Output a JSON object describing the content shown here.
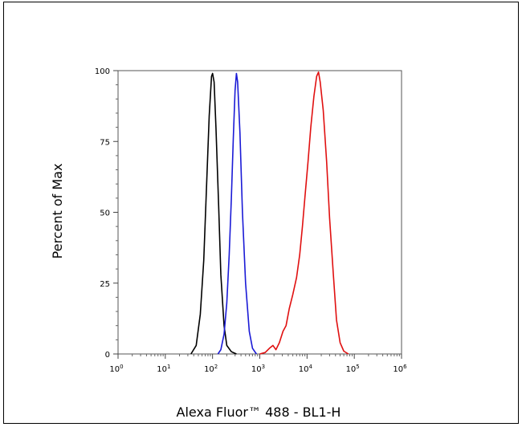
{
  "chart_data": {
    "type": "line",
    "xlabel": "Alexa Fluor™ 488 - BL1-H",
    "ylabel": "Percent of Max",
    "x_scale": "log",
    "xlim": [
      1,
      1000000
    ],
    "ylim": [
      0,
      100
    ],
    "x_ticks": [
      {
        "base": "10",
        "exp": "0"
      },
      {
        "base": "10",
        "exp": "1"
      },
      {
        "base": "10",
        "exp": "2"
      },
      {
        "base": "10",
        "exp": "3"
      },
      {
        "base": "10",
        "exp": "4"
      },
      {
        "base": "10",
        "exp": "5"
      },
      {
        "base": "10",
        "exp": "6"
      }
    ],
    "y_ticks": [
      "0",
      "25",
      "50",
      "75",
      "100"
    ],
    "grid": false,
    "series": [
      {
        "color": "#000000",
        "points": [
          [
            35,
            0
          ],
          [
            45,
            3
          ],
          [
            55,
            14
          ],
          [
            65,
            33
          ],
          [
            75,
            60
          ],
          [
            85,
            84
          ],
          [
            95,
            98
          ],
          [
            100,
            99
          ],
          [
            108,
            96
          ],
          [
            118,
            80
          ],
          [
            135,
            52
          ],
          [
            150,
            28
          ],
          [
            175,
            10
          ],
          [
            200,
            3
          ],
          [
            250,
            0.8
          ],
          [
            320,
            0
          ]
        ]
      },
      {
        "color": "#1a1ad6",
        "points": [
          [
            130,
            0
          ],
          [
            150,
            1.5
          ],
          [
            175,
            7
          ],
          [
            200,
            18
          ],
          [
            225,
            35
          ],
          [
            250,
            55
          ],
          [
            275,
            76
          ],
          [
            300,
            93
          ],
          [
            320,
            99
          ],
          [
            340,
            96
          ],
          [
            380,
            78
          ],
          [
            430,
            50
          ],
          [
            500,
            25
          ],
          [
            600,
            8
          ],
          [
            700,
            2
          ],
          [
            850,
            0
          ]
        ]
      },
      {
        "color": "#e01010",
        "points": [
          [
            1000,
            0
          ],
          [
            1300,
            0.5
          ],
          [
            1600,
            2
          ],
          [
            1900,
            3
          ],
          [
            2200,
            1.5
          ],
          [
            2600,
            4
          ],
          [
            3100,
            8
          ],
          [
            3600,
            10
          ],
          [
            4200,
            16
          ],
          [
            5000,
            21
          ],
          [
            6000,
            27
          ],
          [
            7000,
            35
          ],
          [
            8000,
            45
          ],
          [
            9000,
            55
          ],
          [
            10500,
            68
          ],
          [
            12000,
            80
          ],
          [
            14000,
            91
          ],
          [
            16000,
            98
          ],
          [
            17500,
            99.5
          ],
          [
            19000,
            96
          ],
          [
            22000,
            86
          ],
          [
            26000,
            68
          ],
          [
            30000,
            48
          ],
          [
            36000,
            28
          ],
          [
            42000,
            12
          ],
          [
            50000,
            4
          ],
          [
            60000,
            1
          ],
          [
            75000,
            0
          ]
        ]
      }
    ]
  }
}
